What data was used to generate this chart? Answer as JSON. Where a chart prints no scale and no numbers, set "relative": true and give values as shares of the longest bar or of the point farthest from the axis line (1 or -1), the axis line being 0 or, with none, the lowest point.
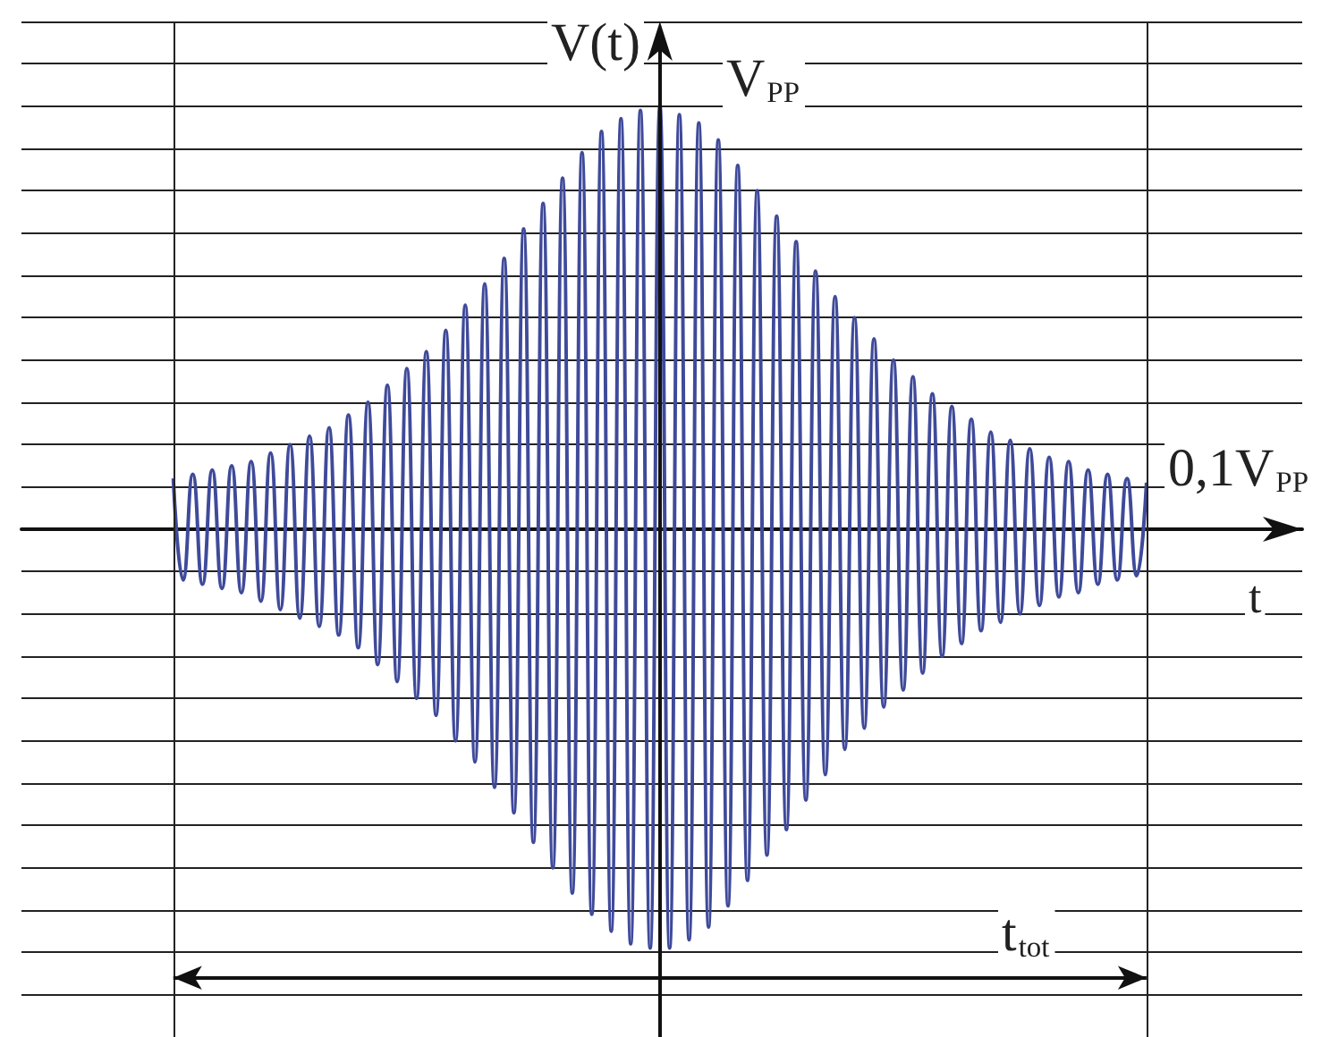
{
  "chart_data": {
    "type": "line",
    "relative": true,
    "ylabel": "V(t)",
    "xlabel": "t",
    "color": "#3f4a9a",
    "marker": "none",
    "grid": true,
    "annotations": [
      "V$_{PP}$",
      "0,1V$_{PP}$",
      "t$_{tot}$"
    ],
    "categories": [
      null,
      null,
      null,
      null,
      null,
      null,
      null,
      null,
      null,
      null,
      null,
      null,
      null,
      null,
      null,
      null,
      null,
      null,
      null,
      null,
      null,
      null,
      null,
      null,
      null,
      null,
      null,
      null,
      null,
      null,
      null,
      null,
      null,
      null,
      null,
      null,
      null,
      null,
      null,
      null,
      null,
      null,
      null,
      null,
      null,
      null,
      null,
      null,
      null,
      null,
      null,
      null,
      null,
      null,
      null,
      null,
      null,
      null,
      null,
      null,
      null,
      null,
      null,
      null,
      null,
      null,
      null,
      null,
      null,
      null,
      null,
      null,
      null,
      null,
      null,
      null,
      null,
      null,
      null,
      null,
      null,
      null,
      null,
      null,
      null,
      null,
      null,
      null,
      null,
      null,
      null,
      null,
      null,
      null,
      null,
      null,
      null,
      null,
      null,
      null,
      null
    ],
    "values": [
      0.12,
      -0.12,
      0.13,
      -0.13,
      0.14,
      -0.14,
      0.15,
      -0.15,
      0.16,
      -0.17,
      0.18,
      -0.19,
      0.2,
      -0.21,
      0.22,
      -0.23,
      0.24,
      -0.25,
      0.27,
      -0.28,
      0.3,
      -0.32,
      0.34,
      -0.36,
      0.38,
      -0.4,
      0.42,
      -0.44,
      0.47,
      -0.5,
      0.53,
      -0.55,
      0.58,
      -0.61,
      0.64,
      -0.67,
      0.71,
      -0.74,
      0.77,
      -0.8,
      0.83,
      -0.86,
      0.89,
      -0.91,
      0.94,
      -0.95,
      0.97,
      -0.98,
      0.99,
      -0.99,
      1,
      -0.99,
      0.98,
      -0.97,
      0.96,
      -0.94,
      0.92,
      -0.89,
      0.86,
      -0.83,
      0.8,
      -0.77,
      0.74,
      -0.71,
      0.68,
      -0.64,
      0.61,
      -0.58,
      0.55,
      -0.52,
      0.5,
      -0.47,
      0.45,
      -0.42,
      0.4,
      -0.38,
      0.36,
      -0.34,
      0.32,
      -0.3,
      0.29,
      -0.27,
      0.26,
      -0.24,
      0.23,
      -0.22,
      0.21,
      -0.2,
      0.19,
      -0.18,
      0.17,
      -0.16,
      0.16,
      -0.15,
      0.14,
      -0.13,
      0.13,
      -0.12,
      0.12,
      -0.11,
      0.11
    ]
  }
}
